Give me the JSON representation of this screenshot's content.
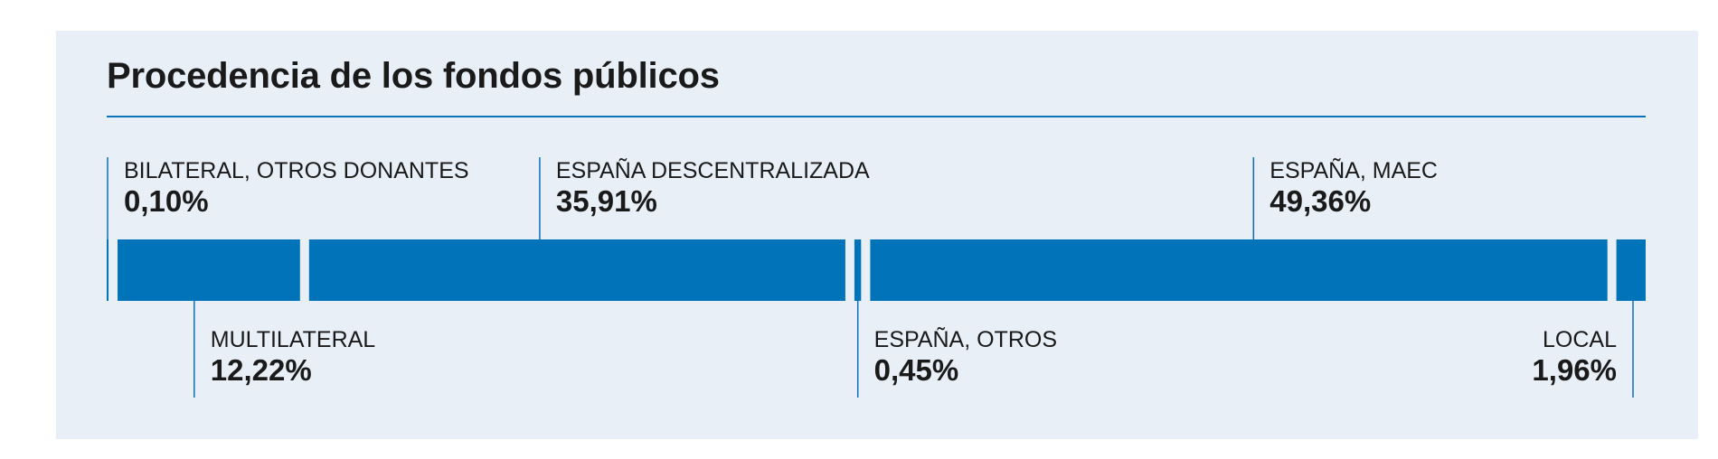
{
  "header": {
    "title": "Procedencia de los fondos públicos"
  },
  "colors": {
    "bar": "#0073b9",
    "background": "#e9eff7",
    "rule": "#0b72b8"
  },
  "chart_data": {
    "type": "bar",
    "orientation": "horizontal-stacked",
    "title": "Procedencia de los fondos públicos",
    "unit": "%",
    "segments": [
      {
        "name": "BILATERAL, OTROS DONANTES",
        "label": "0,10%",
        "value": 0.1,
        "label_position": "top"
      },
      {
        "name": "MULTILATERAL",
        "label": "12,22%",
        "value": 12.22,
        "label_position": "bottom"
      },
      {
        "name": "ESPAÑA DESCENTRALIZADA",
        "label": "35,91%",
        "value": 35.91,
        "label_position": "top"
      },
      {
        "name": "ESPAÑA, OTROS",
        "label": "0,45%",
        "value": 0.45,
        "label_position": "bottom"
      },
      {
        "name": "ESPAÑA, MAEC",
        "label": "49,36%",
        "value": 49.36,
        "label_position": "top"
      },
      {
        "name": "LOCAL",
        "label": "1,96%",
        "value": 1.96,
        "label_position": "bottom"
      }
    ]
  }
}
